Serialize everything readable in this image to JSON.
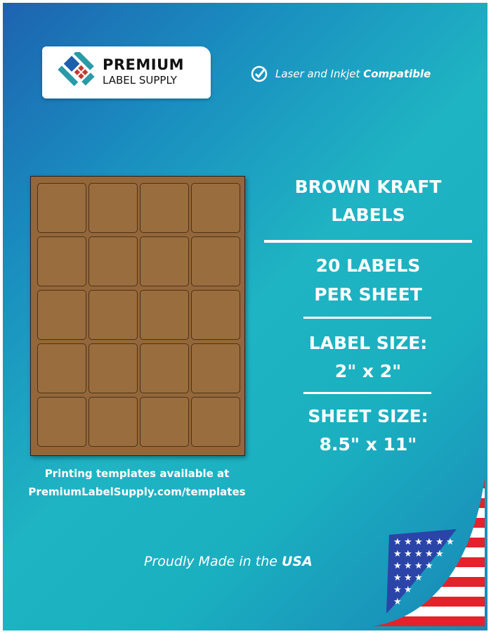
{
  "logo": {
    "line1": "PREMIUM",
    "line2": "LABEL SUPPLY"
  },
  "compat": {
    "prefix": "Laser and Inkjet ",
    "bold": "Compatible",
    "icon": "check-circle-icon"
  },
  "product": {
    "title1": "BROWN KRAFT",
    "title2": "LABELS",
    "count1": "20 LABELS",
    "count2": "PER SHEET",
    "size_label": "LABEL SIZE:",
    "size_value": "2\" x 2\"",
    "sheet_label": "SHEET SIZE:",
    "sheet_value": "8.5\" x 11\""
  },
  "sheet": {
    "rows": 5,
    "columns": 4,
    "label_color": "#9a6d3e"
  },
  "templates": {
    "line1": "Printing templates available at",
    "line2": "PremiumLabelSupply.com/templates"
  },
  "footer": {
    "prefix": "Proudly Made in the ",
    "bold": "USA"
  }
}
